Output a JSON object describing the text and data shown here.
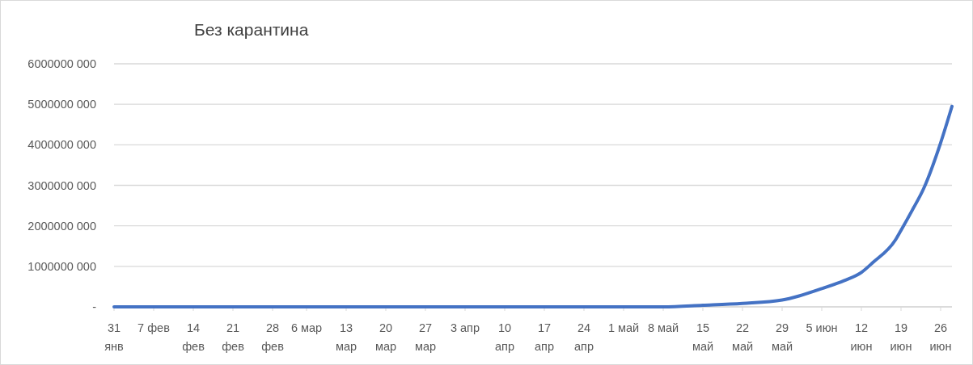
{
  "chart_data": {
    "type": "line",
    "title": "Без карантина",
    "x": [
      "--01-31",
      "--02-14",
      "--03-01",
      "--03-15",
      "--04-01",
      "--04-17",
      "--04-24",
      "--05-01",
      "--05-08",
      "--05-15",
      "--05-22",
      "--05-29",
      "--06-01",
      "--06-05",
      "--06-09",
      "--06-12",
      "--06-14",
      "--06-18",
      "--06-19",
      "--06-21",
      "--06-23",
      "--06-26",
      "--06-28"
    ],
    "series": [
      {
        "color": "#4472c4",
        "values": [
          0,
          0,
          0,
          0,
          0,
          0,
          0,
          0,
          0,
          40000000,
          87000000,
          170000000,
          270000000,
          450000000,
          650000000,
          850000000,
          1090000000,
          1650000000,
          1890000000,
          2390000000,
          2920000000,
          4050000000,
          4950000000
        ]
      }
    ],
    "xlim": [
      "--01-31",
      "--06-28"
    ],
    "xticks": [
      {
        "value": "--01-31",
        "label": "31 янв"
      },
      {
        "value": "--02-07",
        "label": "7 фев"
      },
      {
        "value": "--02-14",
        "label": "14 фев"
      },
      {
        "value": "--02-21",
        "label": "21 фев"
      },
      {
        "value": "--02-28",
        "label": "28 фев"
      },
      {
        "value": "--03-06",
        "label": "6 мар"
      },
      {
        "value": "--03-13",
        "label": "13 мар"
      },
      {
        "value": "--03-20",
        "label": "20 мар"
      },
      {
        "value": "--03-27",
        "label": "27 мар"
      },
      {
        "value": "--04-03",
        "label": "3 апр"
      },
      {
        "value": "--04-10",
        "label": "10 апр"
      },
      {
        "value": "--04-17",
        "label": "17 апр"
      },
      {
        "value": "--04-24",
        "label": "24 апр"
      },
      {
        "value": "--05-01",
        "label": "1 май"
      },
      {
        "value": "--05-08",
        "label": "8 май"
      },
      {
        "value": "--05-15",
        "label": "15 май"
      },
      {
        "value": "--05-22",
        "label": "22 май"
      },
      {
        "value": "--05-29",
        "label": "29 май"
      },
      {
        "value": "--06-05",
        "label": "5 июн"
      },
      {
        "value": "--06-12",
        "label": "12 июн"
      },
      {
        "value": "--06-19",
        "label": "19 июн"
      },
      {
        "value": "--06-26",
        "label": "26 июн"
      }
    ],
    "ylim": [
      0,
      6000000000
    ],
    "yticks": [
      {
        "value": 0,
        "label": "-"
      },
      {
        "value": 1000000000,
        "label": "1000000 000"
      },
      {
        "value": 2000000000,
        "label": "2000000 000"
      },
      {
        "value": 3000000000,
        "label": "3000000 000"
      },
      {
        "value": 4000000000,
        "label": "4000000 000"
      },
      {
        "value": 5000000000,
        "label": "5000000 000"
      },
      {
        "value": 6000000000,
        "label": "6000000 000"
      }
    ],
    "grid": "y",
    "line_style": "solid",
    "marker": "none"
  }
}
